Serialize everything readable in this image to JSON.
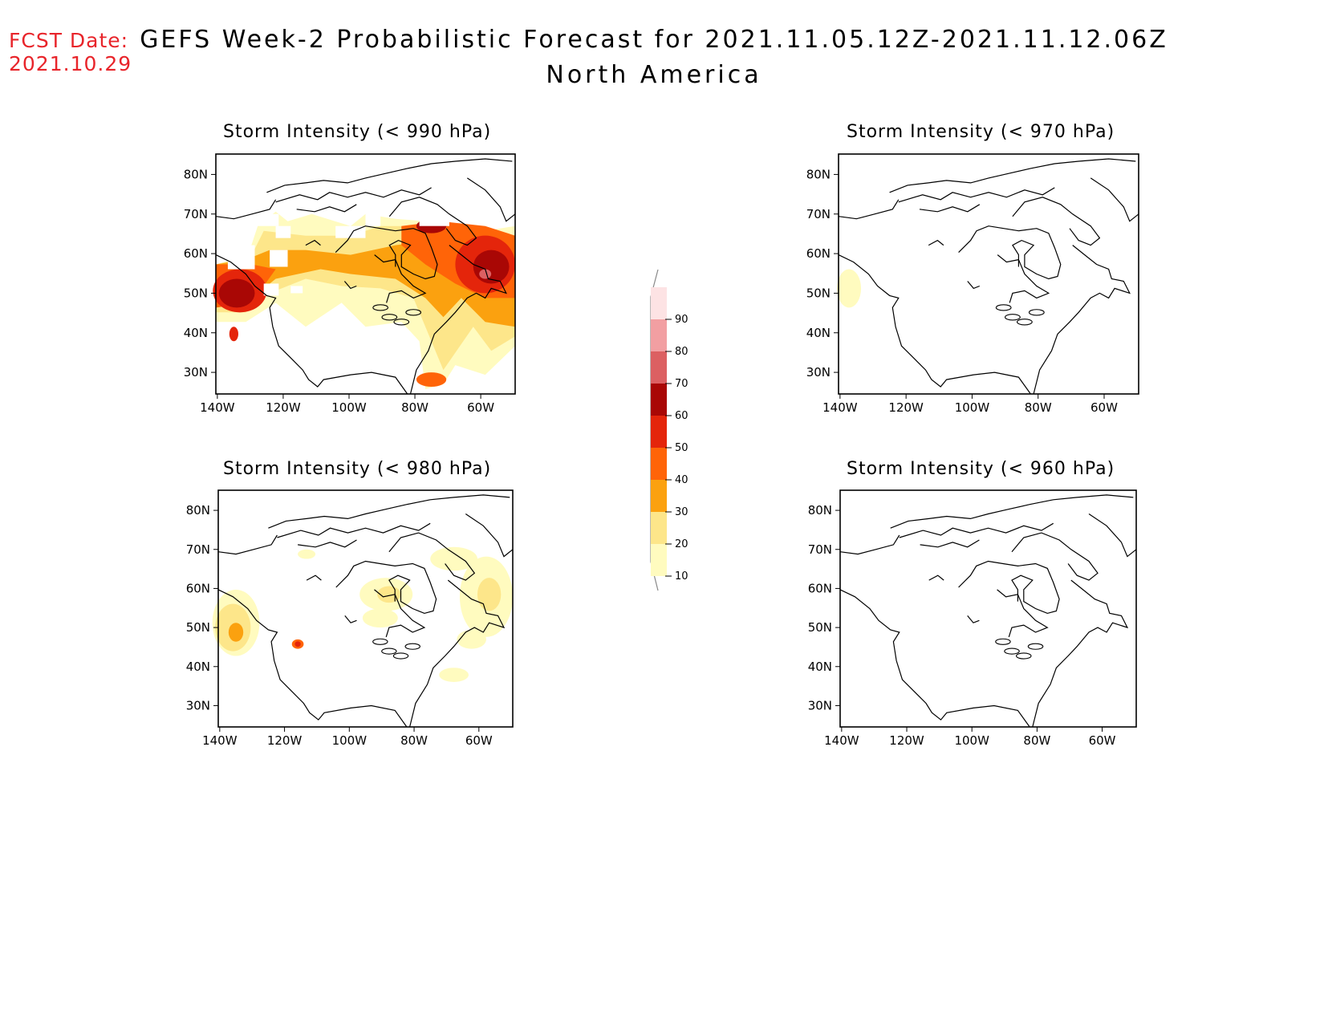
{
  "header": {
    "fcst_label": "FCST Date:",
    "fcst_date": "2021.10.29",
    "title": "GEFS Week-2 Probabilistic Forecast for 2021.11.05.12Z-2021.11.12.06Z",
    "subtitle": "North America"
  },
  "axes": {
    "lat_ticks": [
      "80N",
      "70N",
      "60N",
      "50N",
      "40N",
      "30N"
    ],
    "lon_ticks": [
      "140W",
      "120W",
      "100W",
      "80W",
      "60W"
    ]
  },
  "panels": [
    {
      "id": "p990",
      "title": "Storm Intensity (< 990 hPa)",
      "coverage": "widespread"
    },
    {
      "id": "p970",
      "title": "Storm Intensity (< 970 hPa)",
      "coverage": "minimal"
    },
    {
      "id": "p980",
      "title": "Storm Intensity (< 980 hPa)",
      "coverage": "scattered"
    },
    {
      "id": "p960",
      "title": "Storm Intensity (< 960 hPa)",
      "coverage": "none"
    }
  ],
  "colorbar": {
    "levels": [
      "10",
      "20",
      "30",
      "40",
      "50",
      "60",
      "70",
      "80",
      "90"
    ],
    "colors": [
      "#fffbbf",
      "#fde68a",
      "#fba10f",
      "#ff6408",
      "#e4250b",
      "#a90705",
      "#dc6062",
      "#f29fa2",
      "#fde3e4"
    ]
  }
}
